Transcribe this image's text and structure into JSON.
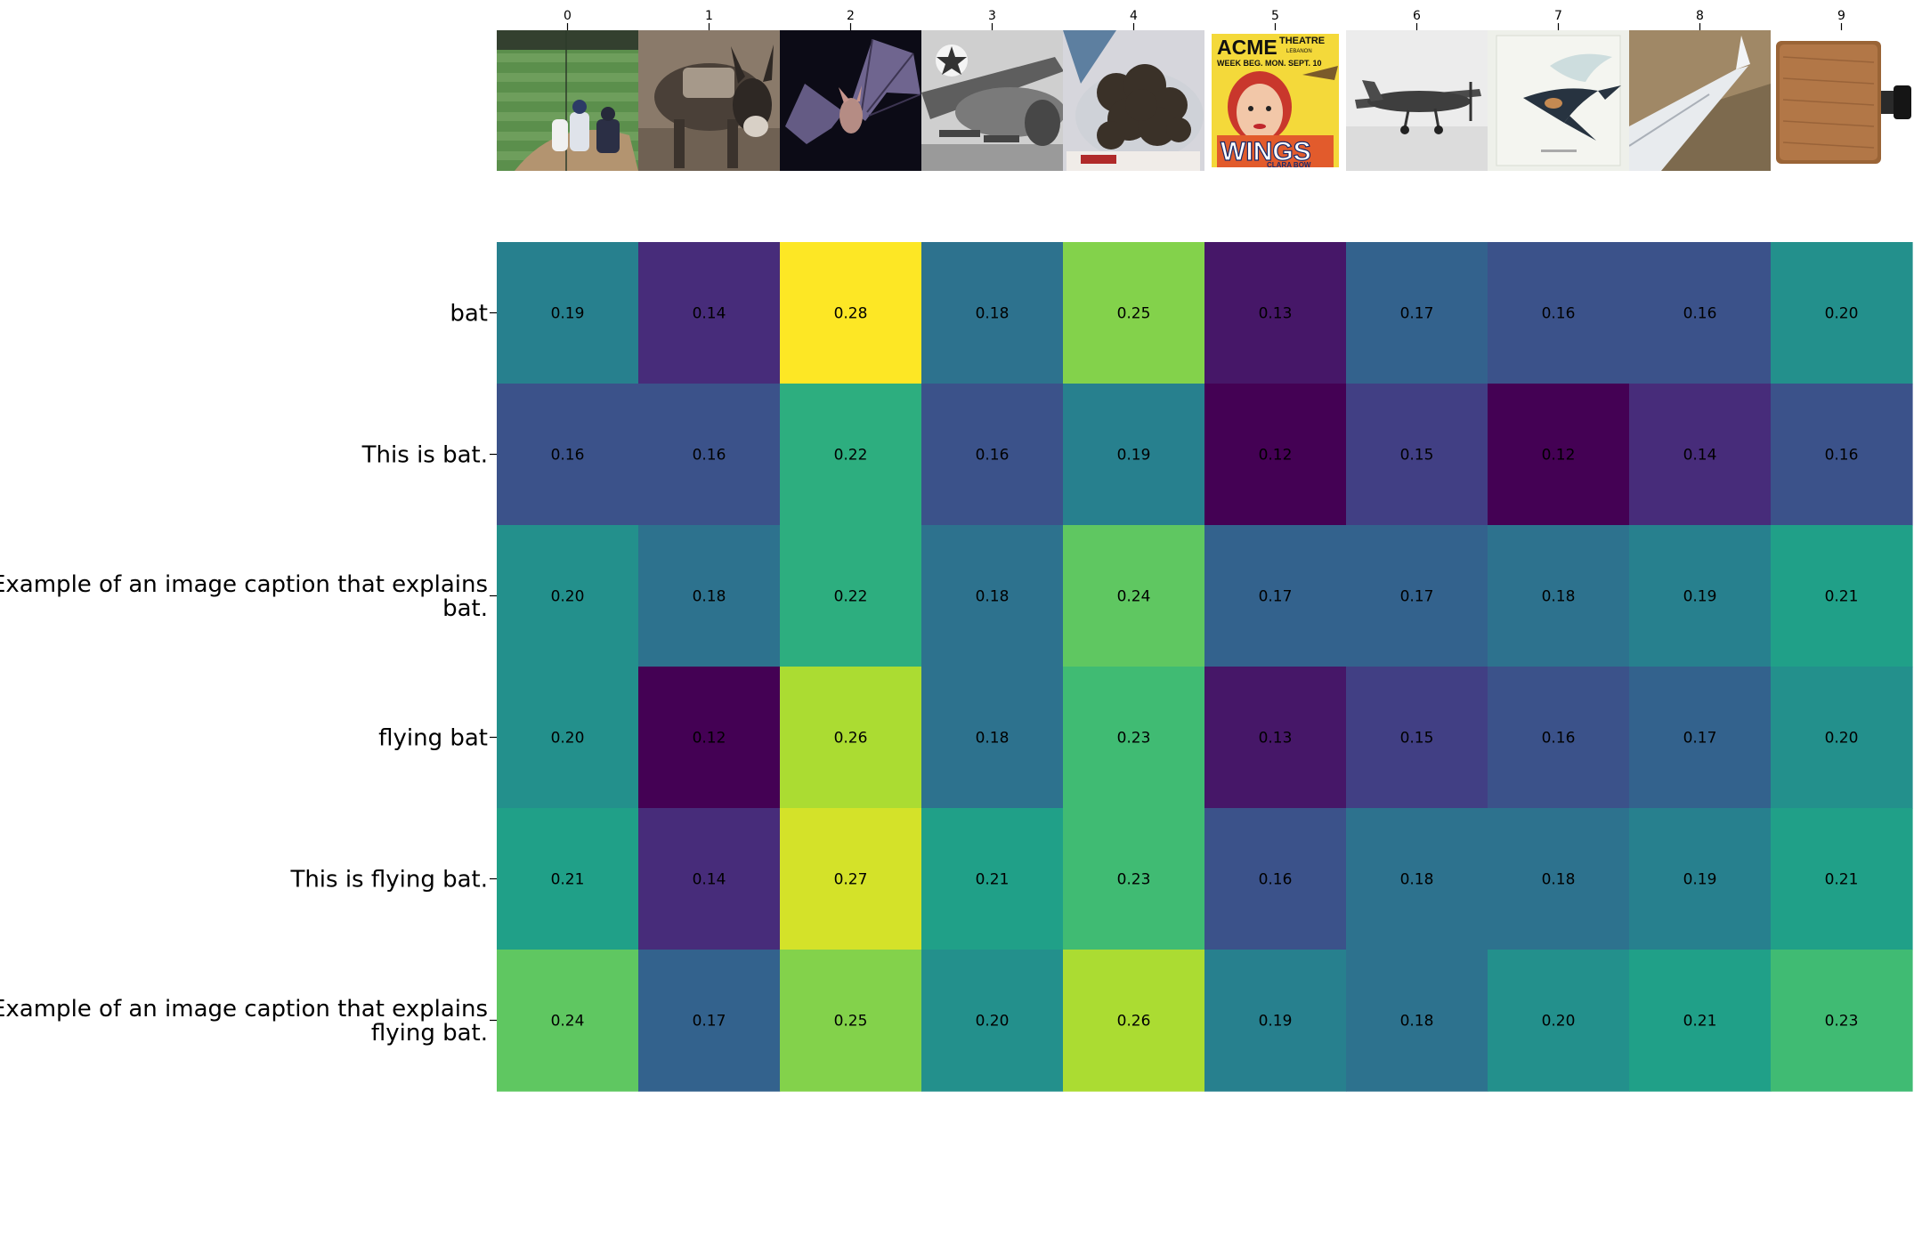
{
  "chart_data": {
    "type": "heatmap",
    "title": "",
    "xlabel": "",
    "ylabel": "",
    "columns": [
      "0",
      "1",
      "2",
      "3",
      "4",
      "5",
      "6",
      "7",
      "8",
      "9"
    ],
    "column_images": [
      "baseball-game-thumbnail",
      "donkey-thumbnail",
      "flying-bat-thumbnail",
      "military-aircraft-thumbnail",
      "bats-pile-thumbnail",
      "wings-movie-poster-thumbnail",
      "propeller-airplane-thumbnail",
      "swallow-illustration-thumbnail",
      "airplane-wing-thumbnail",
      "wooden-paddle-thumbnail"
    ],
    "poster_text": {
      "acme": "ACME",
      "theatre": "THEATRE",
      "lebanon": "LEBANON",
      "week": "WEEK BEG. MON. SEPT. 10",
      "wings": "WINGS",
      "star": "CLARA BOW"
    },
    "rows": [
      [
        "bat"
      ],
      [
        "This is bat."
      ],
      [
        "Example of an image caption that explains",
        "bat."
      ],
      [
        "flying bat"
      ],
      [
        "This is flying bat."
      ],
      [
        "Example of an image caption that explains",
        "flying bat."
      ]
    ],
    "values": [
      [
        0.19,
        0.14,
        0.28,
        0.18,
        0.25,
        0.13,
        0.17,
        0.16,
        0.16,
        0.2
      ],
      [
        0.16,
        0.16,
        0.22,
        0.16,
        0.19,
        0.12,
        0.15,
        0.12,
        0.14,
        0.16
      ],
      [
        0.2,
        0.18,
        0.22,
        0.18,
        0.24,
        0.17,
        0.17,
        0.18,
        0.19,
        0.21
      ],
      [
        0.2,
        0.12,
        0.26,
        0.18,
        0.23,
        0.13,
        0.15,
        0.16,
        0.17,
        0.2
      ],
      [
        0.21,
        0.14,
        0.27,
        0.21,
        0.23,
        0.16,
        0.18,
        0.18,
        0.19,
        0.21
      ],
      [
        0.24,
        0.17,
        0.25,
        0.2,
        0.26,
        0.19,
        0.18,
        0.2,
        0.21,
        0.23
      ]
    ],
    "value_range": [
      0.12,
      0.28
    ],
    "colormap": "viridis",
    "colorbar": false
  }
}
